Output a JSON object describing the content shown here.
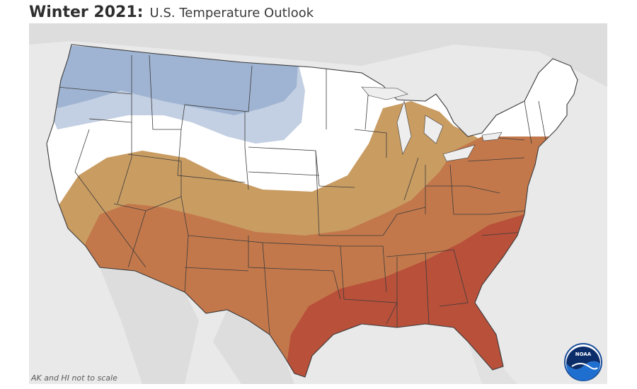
{
  "title": {
    "bold": "Winter 2021:",
    "light": "U.S. Temperature Outlook"
  },
  "footnote": "AK and HI not to scale",
  "logo": {
    "text": "NOAA",
    "icon": "noaa-logo"
  },
  "legend_colors": {
    "below_normal_strong": "#9fb4d2",
    "below_normal_weak": "#c3cfe2",
    "equal_chances": "#ffffff",
    "above_normal_weak": "#c99c62",
    "above_normal": "#c3784b",
    "above_normal_strong": "#b8503a",
    "background_land": "#dcdcdc",
    "water": "#f2f2f2"
  }
}
